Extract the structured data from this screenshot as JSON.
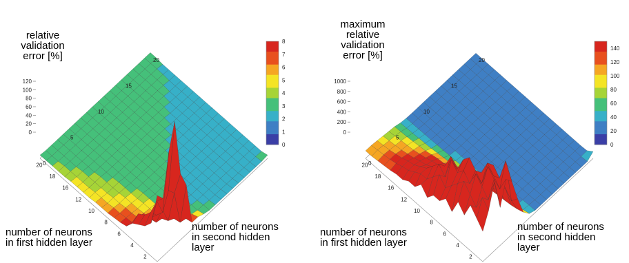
{
  "chart_data": [
    {
      "type": "surface3d",
      "zlabel": "relative\nvalidation\nerror [%]",
      "xlabel": "number of neurons\nin first hidden layer",
      "ylabel": "number of neurons\nin second hidden\nlayer",
      "x_ticks": [
        "2",
        "4",
        "6",
        "8",
        "10",
        "12",
        "16",
        "18",
        "20"
      ],
      "y_ticks": [
        "0",
        "5",
        "10",
        "15",
        "20"
      ],
      "z_ticks": [
        "120",
        "100",
        "80",
        "60",
        "40",
        "20",
        "0"
      ],
      "colorbar_ticks": [
        "8",
        "7",
        "6",
        "5",
        "4",
        "3",
        "2",
        "1",
        "0"
      ],
      "colorbar_range": [
        0,
        8
      ],
      "colormap": [
        "#3b3fa6",
        "#3f7fc4",
        "#37b0c8",
        "#45c07a",
        "#a6d437",
        "#f4e425",
        "#f5a623",
        "#e8501e",
        "#d7261e"
      ],
      "grid_size": [
        20,
        20
      ],
      "z_grid": [
        [
          80,
          70,
          120,
          150,
          80,
          60,
          8,
          8,
          5,
          3,
          3,
          3,
          3,
          3,
          3,
          3,
          3,
          3,
          3,
          4
        ],
        [
          40,
          60,
          40,
          60,
          50,
          8,
          6,
          5,
          3,
          3,
          2,
          2,
          2,
          2,
          2,
          2,
          2,
          2,
          2,
          2
        ],
        [
          30,
          40,
          30,
          30,
          10,
          6,
          4,
          3,
          3,
          2,
          2,
          2,
          2,
          2,
          2,
          2,
          2,
          2,
          2,
          2
        ],
        [
          25,
          30,
          20,
          8,
          6,
          5,
          3,
          3,
          3,
          2,
          2,
          2,
          2,
          2,
          2,
          2,
          2,
          2,
          2,
          2
        ],
        [
          20,
          25,
          10,
          6,
          5,
          4,
          3,
          3,
          2,
          2,
          2,
          2,
          2,
          2,
          2,
          2,
          2,
          2,
          2,
          2
        ],
        [
          10,
          8,
          7,
          6,
          5,
          4,
          3,
          3,
          2,
          2,
          2,
          2,
          2,
          2,
          2,
          2,
          2,
          2,
          2,
          2
        ],
        [
          8,
          7,
          6,
          5,
          5,
          4,
          3,
          3,
          3,
          2,
          2,
          2,
          2,
          2,
          2,
          2,
          2,
          2,
          2,
          2
        ],
        [
          7,
          6,
          6,
          5,
          4,
          4,
          3,
          3,
          3,
          3,
          2,
          2,
          2,
          2,
          2,
          2,
          2,
          2,
          2,
          2
        ],
        [
          6,
          6,
          5,
          5,
          4,
          3,
          3,
          3,
          3,
          3,
          3,
          2,
          2,
          2,
          2,
          2,
          2,
          2,
          2,
          2
        ],
        [
          6,
          5,
          5,
          4,
          4,
          3,
          3,
          3,
          3,
          3,
          3,
          3,
          2,
          2,
          2,
          2,
          2,
          2,
          2,
          2
        ],
        [
          6,
          5,
          4,
          4,
          4,
          3,
          3,
          3,
          3,
          3,
          3,
          3,
          3,
          2,
          2,
          2,
          2,
          2,
          2,
          2
        ],
        [
          5,
          5,
          4,
          4,
          3,
          3,
          3,
          3,
          3,
          3,
          3,
          3,
          3,
          3,
          2,
          2,
          2,
          2,
          2,
          2
        ],
        [
          5,
          4,
          4,
          4,
          3,
          3,
          3,
          3,
          3,
          3,
          3,
          3,
          3,
          3,
          3,
          2,
          2,
          2,
          2,
          2
        ],
        [
          5,
          4,
          4,
          3,
          3,
          3,
          3,
          3,
          3,
          3,
          3,
          3,
          3,
          3,
          3,
          3,
          2,
          2,
          2,
          2
        ],
        [
          5,
          4,
          4,
          3,
          3,
          3,
          3,
          3,
          3,
          3,
          3,
          3,
          3,
          3,
          3,
          3,
          3,
          2,
          2,
          2
        ],
        [
          4,
          4,
          3,
          3,
          3,
          3,
          3,
          3,
          3,
          3,
          3,
          3,
          3,
          3,
          3,
          3,
          3,
          3,
          2,
          2
        ],
        [
          4,
          4,
          3,
          3,
          3,
          3,
          3,
          3,
          3,
          3,
          3,
          3,
          3,
          3,
          3,
          3,
          3,
          3,
          3,
          2
        ],
        [
          4,
          3,
          3,
          3,
          3,
          3,
          3,
          3,
          3,
          3,
          3,
          3,
          3,
          3,
          3,
          3,
          3,
          3,
          3,
          2
        ],
        [
          4,
          3,
          3,
          3,
          3,
          3,
          3,
          3,
          3,
          3,
          3,
          3,
          3,
          3,
          3,
          3,
          3,
          3,
          3,
          3
        ],
        [
          4,
          3,
          3,
          3,
          3,
          3,
          3,
          3,
          3,
          3,
          3,
          3,
          3,
          3,
          3,
          3,
          3,
          3,
          3,
          3
        ]
      ]
    },
    {
      "type": "surface3d",
      "zlabel": "maximum\nrelative\nvalidation\nerror [%]",
      "xlabel": "number of neurons\nin first hidden layer",
      "ylabel": "number of neurons\nin second hidden\nlayer",
      "x_ticks": [
        "2",
        "4",
        "6",
        "8",
        "10",
        "12",
        "16",
        "18",
        "20"
      ],
      "y_ticks": [
        "0",
        "5",
        "10",
        "15",
        "20"
      ],
      "z_ticks": [
        "1000",
        "800",
        "600",
        "400",
        "200",
        "0"
      ],
      "colorbar_ticks": [
        "140",
        "120",
        "100",
        "80",
        "60",
        "40",
        "20",
        "0"
      ],
      "colorbar_range": [
        0,
        150
      ],
      "colormap": [
        "#3b3fa6",
        "#3f7fc4",
        "#37b0c8",
        "#45c07a",
        "#a6d437",
        "#f4e425",
        "#f5a623",
        "#e8501e",
        "#d7261e"
      ],
      "grid_size": [
        20,
        20
      ],
      "z_grid": [
        [
          400,
          600,
          900,
          500,
          800,
          700,
          400,
          150,
          60,
          30,
          30,
          30,
          30,
          30,
          30,
          30,
          30,
          30,
          30,
          90
        ],
        [
          500,
          700,
          600,
          800,
          600,
          900,
          300,
          120,
          40,
          30,
          25,
          25,
          25,
          25,
          25,
          25,
          25,
          25,
          25,
          30
        ],
        [
          600,
          500,
          700,
          900,
          700,
          600,
          400,
          100,
          40,
          25,
          25,
          25,
          25,
          25,
          25,
          25,
          25,
          25,
          25,
          25
        ],
        [
          400,
          600,
          800,
          600,
          800,
          700,
          300,
          90,
          35,
          25,
          25,
          25,
          25,
          25,
          25,
          25,
          25,
          25,
          25,
          25
        ],
        [
          500,
          700,
          600,
          700,
          600,
          500,
          250,
          80,
          30,
          25,
          25,
          25,
          25,
          25,
          25,
          25,
          25,
          25,
          25,
          25
        ],
        [
          300,
          600,
          700,
          800,
          500,
          400,
          200,
          70,
          30,
          25,
          25,
          25,
          25,
          25,
          25,
          25,
          25,
          25,
          25,
          25
        ],
        [
          400,
          500,
          600,
          700,
          600,
          300,
          150,
          60,
          30,
          25,
          25,
          25,
          25,
          25,
          25,
          25,
          25,
          25,
          25,
          25
        ],
        [
          300,
          400,
          700,
          500,
          400,
          300,
          150,
          60,
          30,
          25,
          25,
          25,
          25,
          25,
          25,
          25,
          25,
          25,
          25,
          25
        ],
        [
          300,
          500,
          400,
          600,
          400,
          250,
          120,
          50,
          30,
          25,
          25,
          25,
          25,
          25,
          25,
          25,
          25,
          25,
          25,
          25
        ],
        [
          200,
          400,
          500,
          400,
          300,
          200,
          110,
          50,
          30,
          25,
          25,
          25,
          25,
          25,
          25,
          25,
          25,
          25,
          25,
          25
        ],
        [
          300,
          300,
          400,
          300,
          250,
          180,
          100,
          45,
          30,
          25,
          25,
          25,
          25,
          25,
          25,
          25,
          25,
          25,
          25,
          25
        ],
        [
          200,
          300,
          300,
          250,
          200,
          150,
          90,
          40,
          28,
          25,
          25,
          25,
          25,
          25,
          25,
          25,
          25,
          25,
          25,
          25
        ],
        [
          200,
          250,
          250,
          200,
          180,
          140,
          80,
          40,
          28,
          25,
          25,
          25,
          25,
          25,
          25,
          25,
          25,
          25,
          25,
          25
        ],
        [
          150,
          200,
          200,
          180,
          150,
          120,
          70,
          35,
          26,
          25,
          25,
          25,
          25,
          25,
          25,
          25,
          25,
          25,
          25,
          25
        ],
        [
          150,
          180,
          180,
          150,
          130,
          100,
          60,
          35,
          26,
          25,
          25,
          25,
          25,
          25,
          25,
          25,
          25,
          25,
          25,
          25
        ],
        [
          130,
          150,
          150,
          130,
          110,
          90,
          55,
          32,
          25,
          25,
          25,
          25,
          25,
          25,
          25,
          25,
          25,
          25,
          25,
          25
        ],
        [
          120,
          130,
          130,
          110,
          100,
          80,
          50,
          30,
          25,
          25,
          25,
          25,
          25,
          25,
          25,
          25,
          25,
          25,
          25,
          25
        ],
        [
          110,
          120,
          110,
          100,
          90,
          70,
          45,
          30,
          25,
          25,
          25,
          25,
          25,
          25,
          25,
          25,
          25,
          25,
          25,
          25
        ],
        [
          100,
          110,
          100,
          90,
          80,
          65,
          40,
          28,
          25,
          25,
          25,
          25,
          25,
          25,
          25,
          25,
          25,
          25,
          25,
          25
        ],
        [
          100,
          100,
          90,
          80,
          70,
          60,
          38,
          28,
          25,
          25,
          25,
          25,
          25,
          25,
          25,
          25,
          25,
          25,
          25,
          25
        ]
      ]
    }
  ]
}
